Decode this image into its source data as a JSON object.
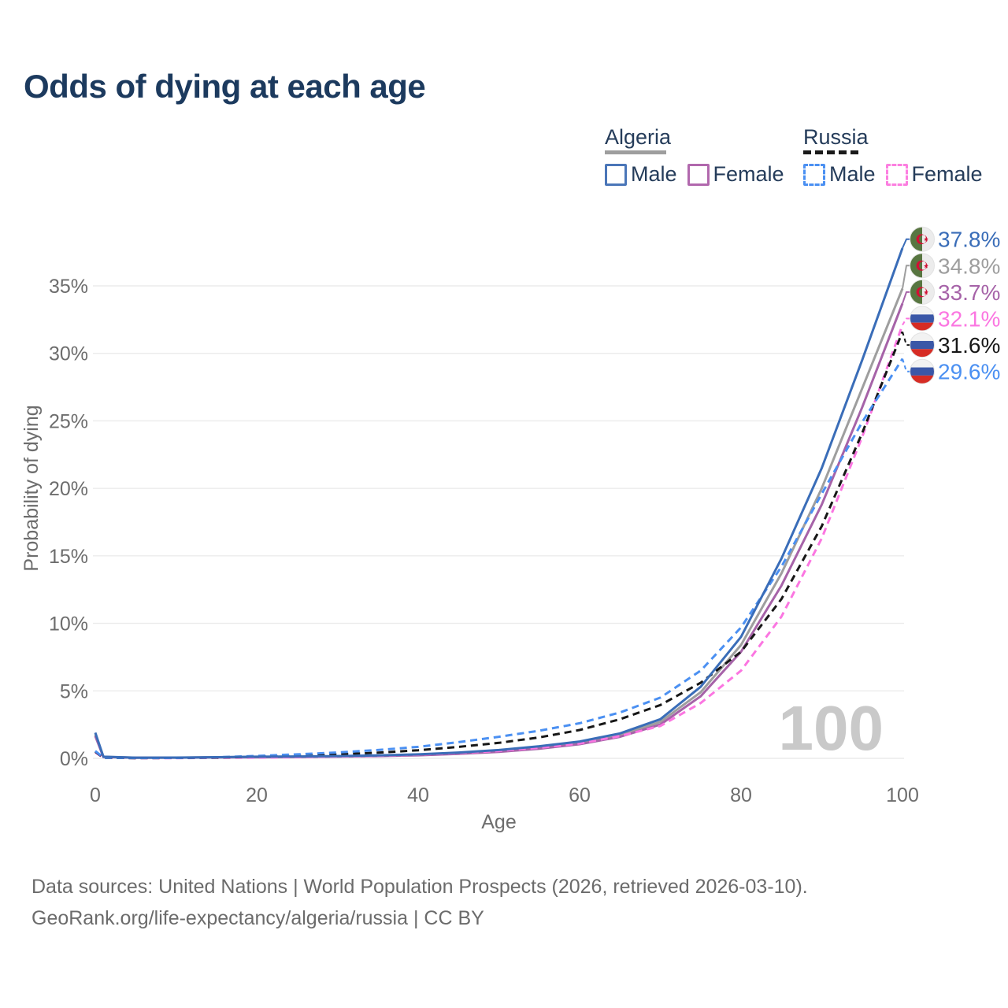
{
  "title": "Odds of dying at each age",
  "watermark_age": "100",
  "legend": {
    "groups": [
      {
        "country": "Algeria",
        "line_style": "solid",
        "swatch_color": "#9e9e9e",
        "items": [
          {
            "label": "Male",
            "color": "#4a76b8"
          },
          {
            "label": "Female",
            "color": "#b168ad"
          }
        ]
      },
      {
        "country": "Russia",
        "line_style": "dashed",
        "swatch_color": "#1a1a1a",
        "items": [
          {
            "label": "Male",
            "color": "#4b90f2"
          },
          {
            "label": "Female",
            "color": "#fc7fe0"
          }
        ]
      }
    ]
  },
  "chart_data": {
    "type": "line",
    "title": "Odds of dying at each age",
    "xlabel": "Age",
    "ylabel": "Probability of dying",
    "xlim": [
      0,
      100
    ],
    "ylim": [
      0,
      38
    ],
    "grid": "horizontal",
    "x_ticks": [
      0,
      20,
      40,
      60,
      80,
      100
    ],
    "y_tick_labels": [
      "0%",
      "5%",
      "10%",
      "15%",
      "20%",
      "25%",
      "30%",
      "35%"
    ],
    "legend_position": "top-right",
    "ages": [
      0,
      1,
      5,
      10,
      15,
      20,
      25,
      30,
      35,
      40,
      45,
      50,
      55,
      60,
      65,
      70,
      75,
      80,
      85,
      90,
      95,
      100
    ],
    "series": [
      {
        "id": "algeria-male",
        "name": "Algeria Male",
        "country": "Algeria",
        "sex": "Male",
        "color": "#3a6db8",
        "dashed": false,
        "flag": "algeria",
        "end_label": "37.8%",
        "end_value": 37.8,
        "values": [
          1.9,
          0.12,
          0.05,
          0.06,
          0.09,
          0.12,
          0.14,
          0.17,
          0.22,
          0.3,
          0.43,
          0.62,
          0.9,
          1.25,
          1.85,
          2.9,
          5.3,
          9.0,
          14.8,
          21.5,
          29.5,
          37.8
        ]
      },
      {
        "id": "algeria-both-sexes",
        "name": "Algeria Both sexes",
        "country": "Algeria",
        "sex": "Both",
        "color": "#9e9e9e",
        "dashed": false,
        "flag": "algeria",
        "end_label": "34.8%",
        "end_value": 34.8,
        "values": [
          1.78,
          0.11,
          0.05,
          0.05,
          0.08,
          0.1,
          0.12,
          0.15,
          0.19,
          0.26,
          0.38,
          0.55,
          0.8,
          1.15,
          1.7,
          2.7,
          4.9,
          8.4,
          13.7,
          20.0,
          27.4,
          34.8
        ]
      },
      {
        "id": "algeria-female",
        "name": "Algeria Female",
        "country": "Algeria",
        "sex": "Female",
        "color": "#a663a8",
        "dashed": false,
        "flag": "algeria",
        "end_label": "33.7%",
        "end_value": 33.7,
        "values": [
          1.65,
          0.1,
          0.04,
          0.05,
          0.07,
          0.08,
          0.1,
          0.13,
          0.17,
          0.23,
          0.33,
          0.48,
          0.72,
          1.05,
          1.6,
          2.5,
          4.6,
          7.9,
          12.8,
          18.8,
          26.0,
          33.7
        ]
      },
      {
        "id": "russia-female",
        "name": "Russia Female",
        "country": "Russia",
        "sex": "Female",
        "color": "#fb76e1",
        "dashed": true,
        "flag": "russia",
        "end_label": "32.1%",
        "end_value": 32.1,
        "values": [
          0.45,
          0.04,
          0.02,
          0.02,
          0.04,
          0.06,
          0.09,
          0.14,
          0.2,
          0.28,
          0.4,
          0.55,
          0.78,
          1.1,
          1.65,
          2.4,
          4.1,
          6.5,
          10.5,
          16.3,
          23.8,
          32.1
        ]
      },
      {
        "id": "russia-both-sexes",
        "name": "Russia Both sexes",
        "country": "Russia",
        "sex": "Both",
        "color": "#171717",
        "dashed": true,
        "flag": "russia",
        "end_label": "31.6%",
        "end_value": 31.6,
        "values": [
          0.5,
          0.04,
          0.02,
          0.03,
          0.06,
          0.13,
          0.2,
          0.29,
          0.42,
          0.6,
          0.85,
          1.15,
          1.55,
          2.1,
          2.9,
          3.95,
          5.6,
          7.9,
          11.8,
          17.2,
          24.1,
          31.6
        ]
      },
      {
        "id": "russia-male",
        "name": "Russia Male",
        "country": "Russia",
        "sex": "Male",
        "color": "#4b90f2",
        "dashed": true,
        "flag": "russia",
        "end_label": "29.6%",
        "end_value": 29.6,
        "values": [
          0.55,
          0.05,
          0.03,
          0.03,
          0.08,
          0.18,
          0.3,
          0.44,
          0.62,
          0.85,
          1.2,
          1.6,
          2.05,
          2.6,
          3.4,
          4.5,
          6.5,
          9.7,
          14.2,
          19.6,
          24.9,
          29.6
        ]
      }
    ],
    "flag_colors": {
      "algeria_green": "#587641",
      "algeria_white": "#ececec",
      "algeria_red": "#d21034",
      "russia_white": "#f2f2f2",
      "russia_blue": "#3a57a7",
      "russia_red": "#d62c24"
    }
  },
  "footer": {
    "line1": "Data sources: United Nations | World Population Prospects (2026, retrieved 2026-03-10).",
    "line2": "GeoRank.org/life-expectancy/algeria/russia | CC BY"
  }
}
